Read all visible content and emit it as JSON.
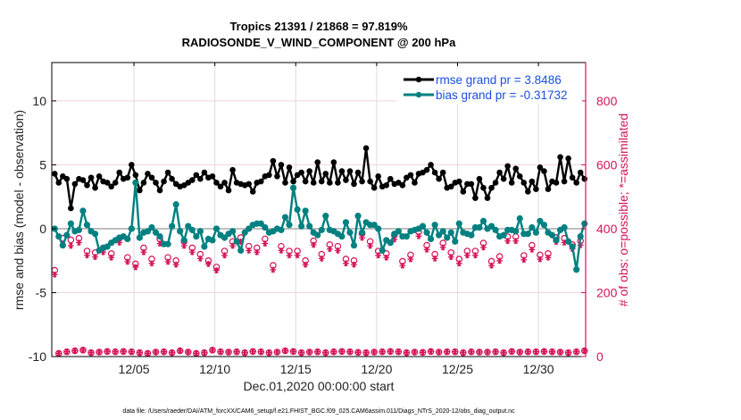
{
  "chart_data": {
    "type": "line",
    "title": [
      "Tropics 21391 / 21868 = 97.819%",
      "RADIOSONDE_V_WIND_COMPONENT @ 200 hPa"
    ],
    "xlabel": "Dec.01,2020 00:00:00 start",
    "ylabel_left": "rmse and bias (model - observation)",
    "ylabel_right": "# of obs: o=possible; *=assimilated",
    "footer": "data file: /Users/raeder/DAI/ATM_forcXX/CAM6_setup/f.e21.FHIST_BGC.f09_025.CAM6assim.011/Diags_NTrS_2020-12/obs_diag_output.nc",
    "x_units": "day of December 2020",
    "xlim": [
      -0.08,
      32.92
    ],
    "x_ticks": [
      5,
      10,
      15,
      20,
      25,
      30
    ],
    "x_tick_labels": [
      "12/05",
      "12/10",
      "12/15",
      "12/20",
      "12/25",
      "12/30"
    ],
    "ylim_left": [
      -10,
      13
    ],
    "y_ticks_left": [
      10,
      5,
      0,
      -5,
      -10
    ],
    "y_tick_labels_left": [
      "10",
      "5",
      "0",
      "-5",
      "-10"
    ],
    "ylim_right": [
      0,
      920
    ],
    "y_ticks_right": [
      800,
      600,
      400,
      200,
      0
    ],
    "y_tick_labels_right": [
      "800",
      "600",
      "400",
      "200",
      "0"
    ],
    "grid": true,
    "legend_position": "top-right",
    "x_start": 0.1,
    "x_step_days": 0.25,
    "series": [
      {
        "name": "rmse grand pr = 3.8486",
        "color": "#000000",
        "marker": "asterisk-dot",
        "values": [
          4.3,
          3.6,
          4.1,
          3.9,
          1.6,
          3.5,
          3.9,
          3.8,
          3.4,
          4.0,
          3.2,
          4.1,
          3.7,
          3.6,
          3.3,
          3.6,
          4.4,
          3.9,
          4.0,
          5.0,
          4.2,
          3.0,
          3.6,
          4.3,
          4.0,
          3.6,
          3.0,
          3.7,
          4.4,
          3.9,
          3.5,
          3.3,
          3.4,
          3.6,
          3.8,
          4.2,
          3.9,
          4.4,
          4.0,
          4.1,
          3.6,
          3.3,
          3.6,
          3.0,
          4.6,
          3.6,
          3.5,
          3.4,
          3.5,
          2.9,
          3.6,
          3.7,
          4.1,
          4.2,
          5.3,
          4.1,
          5.0,
          3.6,
          4.8,
          3.7,
          4.2,
          4.4,
          3.7,
          4.5,
          3.6,
          5.2,
          3.7,
          4.3,
          3.6,
          5.2,
          3.6,
          4.5,
          3.8,
          4.5,
          3.5,
          4.4,
          3.7,
          6.3,
          3.7,
          3.2,
          4.1,
          3.3,
          3.4,
          3.9,
          3.5,
          3.6,
          3.4,
          4.0,
          4.2,
          3.6,
          4.3,
          4.4,
          4.6,
          5.0,
          4.4,
          3.9,
          4.4,
          3.2,
          3.3,
          3.6,
          3.7,
          2.9,
          3.5,
          3.5,
          2.4,
          3.9,
          3.2,
          2.4,
          3.2,
          3.6,
          4.4,
          3.9,
          4.9,
          3.6,
          4.7,
          4.1,
          3.6,
          2.9,
          3.7,
          3.1,
          4.8,
          4.5,
          3.1,
          3.7,
          3.6,
          5.6,
          3.7,
          5.5,
          4.0,
          3.6,
          4.4,
          3.9,
          3.9,
          3.6,
          3.3,
          3.7,
          3.5,
          3.4,
          3.5,
          3.3,
          3.8,
          3.8,
          3.6,
          3.2,
          3.5,
          4.2,
          3.9,
          3.7,
          3.4,
          3.8,
          3.6,
          3.9,
          2.9,
          3.4,
          4.2,
          5.3,
          4.1,
          3.9,
          3.4,
          3.8,
          3.7,
          3.5,
          3.9,
          3.6,
          3.8,
          5.9,
          4.1,
          3.9,
          3.5,
          3.6,
          3.9,
          3.2,
          3.5,
          3.5,
          3.7,
          3.8,
          3.6,
          3.5,
          4.3,
          3.6,
          3.5,
          3.3,
          3.6,
          3.6,
          3.5,
          4.4,
          5.4,
          3.7,
          3.7,
          3.6
        ]
      },
      {
        "name": "bias grand pr = -0.31732",
        "color": "#008080",
        "marker": "dot",
        "values": [
          0.0,
          -0.6,
          -1.3,
          -0.5,
          0.4,
          -0.2,
          -0.1,
          1.4,
          0.3,
          -0.2,
          -0.4,
          -1.7,
          -1.5,
          -1.4,
          -1.1,
          -0.9,
          -0.7,
          -0.6,
          -0.8,
          0.0,
          3.6,
          -0.7,
          -0.3,
          -0.2,
          0.1,
          -0.3,
          -0.6,
          -1.2,
          -1.2,
          0.2,
          1.9,
          -0.2,
          -0.9,
          0.2,
          -0.1,
          -0.6,
          -0.2,
          -1.4,
          -0.8,
          -0.9,
          0.0,
          -0.5,
          -0.7,
          -0.4,
          -0.2,
          -1.0,
          -1.7,
          -0.3,
          0.0,
          0.3,
          0.4,
          0.4,
          0.1,
          -0.3,
          -0.2,
          0.0,
          -0.1,
          0.9,
          0.3,
          3.2,
          1.5,
          0.2,
          1.4,
          0.2,
          -0.3,
          -0.5,
          -0.1,
          1.0,
          -0.1,
          -0.2,
          -0.4,
          -0.6,
          0.5,
          -0.3,
          -1.3,
          1.0,
          -0.3,
          0.5,
          0.3,
          0.3,
          0.0,
          -1.7,
          -0.9,
          -1.1,
          -0.4,
          -0.2,
          -0.6,
          -0.6,
          -0.2,
          -0.1,
          0.0,
          0.2,
          -0.3,
          -0.8,
          0.3,
          -0.5,
          -0.2,
          -0.7,
          -0.3,
          -1.0,
          0.4,
          -0.3,
          -0.4,
          -0.5,
          0.1,
          0.1,
          0.6,
          0.0,
          0.2,
          -0.1,
          -0.6,
          -0.5,
          -0.1,
          -0.1,
          -0.2,
          0.8,
          -0.4,
          -0.4,
          0.1,
          -0.3,
          0.6,
          0.3,
          -0.3,
          -0.5,
          -0.9,
          -0.1,
          0.1,
          -1.0,
          -1.4,
          -3.2,
          -0.6,
          0.4,
          0.6,
          -0.5,
          -0.3,
          -0.7,
          -0.6,
          -0.5,
          -1.6,
          -0.4,
          -2.1,
          -0.8,
          -0.6,
          -0.2,
          0.4,
          -0.8,
          -0.7,
          -0.8,
          -0.2,
          -0.8,
          -0.1,
          0.8,
          0.1,
          0.2,
          -0.9,
          -0.8,
          0.1,
          0.4,
          -0.3,
          0.5,
          -1.1,
          -1.4,
          -1.3,
          -0.7,
          -0.8,
          -0.8,
          -0.9,
          -0.9,
          -0.3,
          0.6,
          -0.3,
          -0.4,
          0.6,
          -0.2,
          -0.1,
          -0.7,
          -0.9,
          -1.1,
          -1.8,
          -0.7,
          -0.8,
          -0.6,
          -0.4,
          0.3,
          -1.2,
          0.0,
          0.6,
          1.9
        ]
      }
    ],
    "obs_possible": [
      270,
      10,
      370,
      15,
      365,
      18,
      370,
      20,
      330,
      12,
      325,
      14,
      340,
      16,
      322,
      15,
      370,
      16,
      310,
      15,
      290,
      12,
      340,
      10,
      305,
      14,
      368,
      15,
      310,
      12,
      300,
      18,
      360,
      14,
      340,
      10,
      320,
      12,
      300,
      20,
      280,
      15,
      330,
      14,
      360,
      15,
      372,
      12,
      345,
      16,
      340,
      15,
      368,
      12,
      285,
      14,
      345,
      18,
      330,
      16,
      330,
      12,
      300,
      14,
      362,
      15,
      320,
      12,
      350,
      15,
      345,
      16,
      305,
      15,
      300,
      13,
      385,
      12,
      360,
      14,
      330,
      15,
      322,
      16,
      380,
      15,
      298,
      12,
      318,
      14,
      390,
      13,
      348,
      16,
      320,
      14,
      355,
      15,
      325,
      15,
      305,
      12,
      330,
      15,
      330,
      14,
      355,
      14,
      298,
      15,
      313,
      12,
      375,
      16,
      375,
      14,
      316,
      15,
      348,
      15,
      318,
      16,
      322,
      15,
      372,
      14,
      370,
      12,
      350,
      15,
      362,
      18,
      353,
      15,
      8,
      0
    ],
    "obs_assimilated": [
      265,
      10,
      360,
      15,
      355,
      18,
      365,
      20,
      325,
      12,
      320,
      14,
      335,
      16,
      318,
      15,
      365,
      16,
      305,
      15,
      288,
      12,
      335,
      10,
      300,
      14,
      362,
      15,
      305,
      12,
      296,
      18,
      355,
      14,
      335,
      10,
      315,
      12,
      298,
      20,
      278,
      15,
      325,
      14,
      355,
      15,
      368,
      12,
      340,
      16,
      335,
      15,
      362,
      12,
      280,
      14,
      340,
      18,
      325,
      16,
      325,
      12,
      296,
      14,
      358,
      15,
      315,
      12,
      345,
      15,
      340,
      16,
      300,
      15,
      296,
      13,
      380,
      12,
      355,
      14,
      325,
      15,
      318,
      16,
      375,
      15,
      293,
      12,
      313,
      14,
      385,
      13,
      343,
      16,
      315,
      14,
      350,
      15,
      320,
      15,
      300,
      12,
      325,
      15,
      325,
      14,
      350,
      14,
      293,
      15,
      308,
      12,
      370,
      16,
      370,
      14,
      311,
      15,
      343,
      15,
      313,
      16,
      318,
      15,
      367,
      14,
      365,
      12,
      345,
      15,
      357,
      18,
      348,
      15,
      8,
      0
    ],
    "legend": [
      {
        "label": "rmse grand pr = 3.8486",
        "color": "#000000"
      },
      {
        "label": "bias grand pr = -0.31732",
        "color": "#008080"
      }
    ],
    "colors": {
      "rmse": "#000000",
      "bias": "#008080",
      "obs": "#d4145a",
      "zero_line": "#b0b0b0",
      "legend_text": "#1a4fe0"
    }
  }
}
